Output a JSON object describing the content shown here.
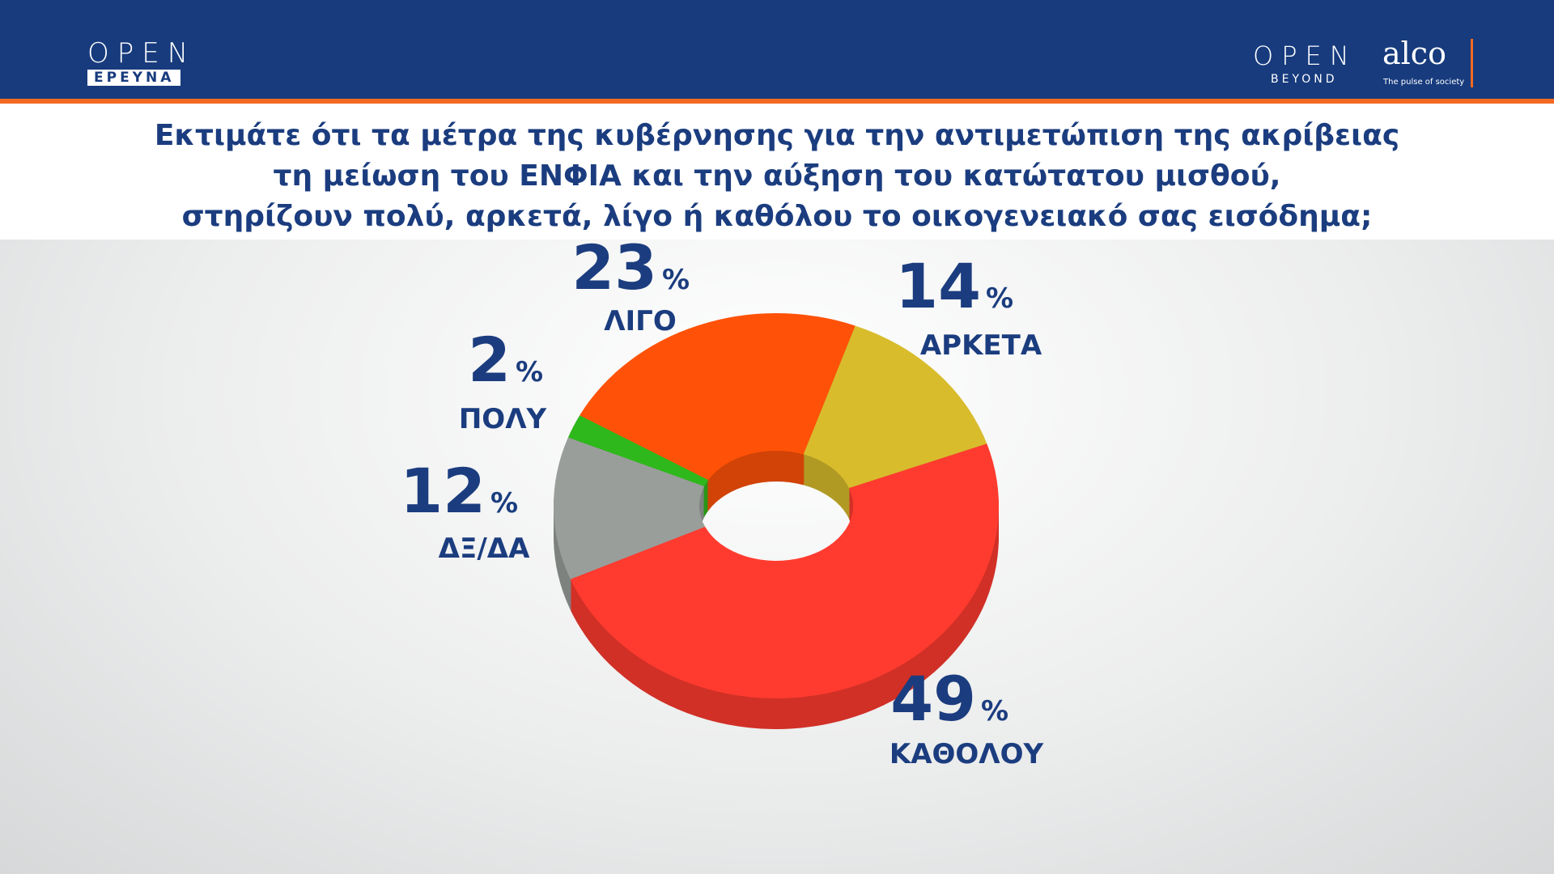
{
  "header": {
    "left_logo": "OPEN",
    "left_logo_sub": "ΕΡΕΥΝΑ",
    "right_logo": "OPEN",
    "right_logo_sub": "BEYOND",
    "partner": "alco",
    "partner_sub": "The pulse of society"
  },
  "chart_data": {
    "type": "donut",
    "title": "Εκτιμάτε ότι τα μέτρα της κυβέρνησης για την αντιμετώπιση της ακρίβειας\nτη μείωση του ΕΝΦΙΑ και την αύξηση του κατώτατου μισθού,\nστηρίζουν πολύ, αρκετά, λίγο ή καθόλου το οικογενειακό σας εισόδημα;",
    "categories": [
      "ΛΙΓΟ",
      "ΑΡΚΕΤΑ",
      "ΚΑΘΟΛΟΥ",
      "ΔΞ/ΔΑ",
      "ΠΟΛΥ"
    ],
    "values": [
      23,
      14,
      49,
      12,
      2
    ],
    "value_suffix": "%",
    "colors": [
      "#ff5208",
      "#d8bc2c",
      "#ff3b2f",
      "#9a9e9b",
      "#2fb81c"
    ]
  }
}
